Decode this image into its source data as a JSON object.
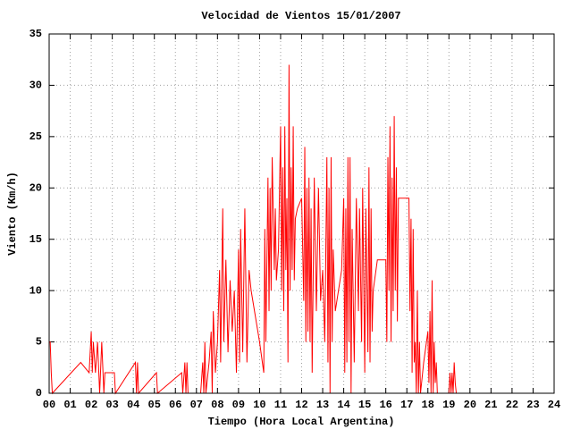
{
  "chart_data": {
    "type": "line",
    "title": "Velocidad de Vientos 15/01/2007",
    "x_label": "Tiempo (Hora Local Argentina)",
    "y_label": "Viento (Km/h)",
    "color": "#ff0000",
    "grid": true,
    "xlim": [
      0,
      24
    ],
    "ylim": [
      0,
      35
    ],
    "yticks": [
      0,
      5,
      10,
      15,
      20,
      25,
      30,
      35
    ],
    "xticks": [
      {
        "value": 0,
        "label": "00"
      },
      {
        "value": 1,
        "label": "01"
      },
      {
        "value": 2,
        "label": "02"
      },
      {
        "value": 3,
        "label": "03"
      },
      {
        "value": 4,
        "label": "04"
      },
      {
        "value": 5,
        "label": "05"
      },
      {
        "value": 6,
        "label": "06"
      },
      {
        "value": 7,
        "label": "07"
      },
      {
        "value": 8,
        "label": "08"
      },
      {
        "value": 9,
        "label": "09"
      },
      {
        "value": 10,
        "label": "10"
      },
      {
        "value": 11,
        "label": "11"
      },
      {
        "value": 12,
        "label": "12"
      },
      {
        "value": 13,
        "label": "13"
      },
      {
        "value": 14,
        "label": "14"
      },
      {
        "value": 15,
        "label": "15"
      },
      {
        "value": 16,
        "label": "16"
      },
      {
        "value": 17,
        "label": "17"
      },
      {
        "value": 18,
        "label": "18"
      },
      {
        "value": 19,
        "label": "19"
      },
      {
        "value": 20,
        "label": "20"
      },
      {
        "value": 21,
        "label": "21"
      },
      {
        "value": 22,
        "label": "22"
      },
      {
        "value": 23,
        "label": "23"
      },
      {
        "value": 24,
        "label": "24"
      }
    ],
    "x": [
      0,
      0.05,
      0.1,
      0.15,
      1.5,
      1.9,
      2,
      2.05,
      2.1,
      2.2,
      2.3,
      2.4,
      2.5,
      2.6,
      2.65,
      3.1,
      3.15,
      4.1,
      4.15,
      4.2,
      4.25,
      5.1,
      5.15,
      6.3,
      6.35,
      6.45,
      6.5,
      6.55,
      6.6,
      7.2,
      7.3,
      7.35,
      7.4,
      7.45,
      7.6,
      7.7,
      7.75,
      7.8,
      7.9,
      8,
      8.1,
      8.15,
      8.25,
      8.3,
      8.4,
      8.5,
      8.6,
      8.7,
      8.8,
      8.9,
      9,
      9.05,
      9.1,
      9.2,
      9.3,
      9.4,
      9.5,
      9.6,
      10,
      10.2,
      10.25,
      10.3,
      10.4,
      10.45,
      10.5,
      10.55,
      10.6,
      10.7,
      10.75,
      10.8,
      10.9,
      11,
      11.05,
      11.1,
      11.15,
      11.2,
      11.25,
      11.3,
      11.35,
      11.4,
      11.45,
      11.5,
      11.55,
      11.6,
      11.65,
      11.7,
      11.8,
      12,
      12.1,
      12.15,
      12.2,
      12.25,
      12.3,
      12.35,
      12.4,
      12.45,
      12.5,
      12.6,
      12.7,
      12.8,
      12.9,
      13,
      13.1,
      13.2,
      13.25,
      13.3,
      13.35,
      13.4,
      13.45,
      13.5,
      13.6,
      13.9,
      14,
      14.05,
      14.1,
      14.15,
      14.2,
      14.25,
      14.3,
      14.35,
      14.4,
      14.5,
      14.6,
      14.7,
      14.75,
      14.85,
      14.9,
      15,
      15.05,
      15.15,
      15.2,
      15.25,
      15.3,
      15.35,
      15.4,
      15.6,
      16,
      16.05,
      16.1,
      16.15,
      16.2,
      16.25,
      16.3,
      16.35,
      16.4,
      16.45,
      16.5,
      16.55,
      16.6,
      17.1,
      17.15,
      17.2,
      17.25,
      17.3,
      17.35,
      17.4,
      17.45,
      17.5,
      17.55,
      17.6,
      17.65,
      17.8,
      18,
      18.05,
      18.1,
      18.15,
      18.2,
      18.25,
      18.3,
      18.35,
      18.4,
      18.45,
      19,
      19.05,
      19.1,
      19.15,
      19.2,
      19.25,
      19.3,
      19.35
    ],
    "values": [
      5,
      5,
      2,
      0,
      3,
      2,
      6,
      2,
      5,
      2,
      5,
      0,
      5,
      0,
      2,
      2,
      0,
      3,
      0,
      3,
      0,
      2,
      0,
      2,
      0,
      3,
      0,
      3,
      0,
      0,
      3,
      0,
      5,
      0,
      3,
      6,
      0,
      8,
      2,
      5,
      12,
      3,
      18,
      5,
      13,
      4,
      11,
      6,
      10,
      2,
      14,
      3,
      16,
      4,
      18,
      3,
      12,
      10,
      5,
      2,
      16,
      5,
      21,
      8,
      20,
      10,
      23,
      12,
      18,
      11,
      14,
      26,
      10,
      22,
      8,
      26,
      12,
      19,
      3,
      32,
      10,
      22,
      12,
      26,
      11,
      17,
      18,
      19,
      9,
      24,
      5,
      20,
      6,
      21,
      5,
      18,
      2,
      21,
      8,
      20,
      9,
      12,
      5,
      23,
      3,
      20,
      0,
      23,
      5,
      14,
      8,
      12,
      19,
      2,
      18,
      3,
      23,
      5,
      23,
      0,
      16,
      3,
      19,
      8,
      18,
      5,
      20,
      2,
      18,
      4,
      22,
      3,
      18,
      6,
      10,
      13,
      13,
      5,
      23,
      10,
      26,
      5,
      21,
      8,
      27,
      10,
      22,
      7,
      19,
      19,
      8,
      17,
      2,
      16,
      3,
      5,
      0,
      10,
      0,
      5,
      0,
      3,
      6,
      1,
      8,
      0,
      11,
      0,
      5,
      1,
      3,
      0,
      0,
      2,
      0,
      2,
      0,
      3,
      1,
      0
    ]
  }
}
